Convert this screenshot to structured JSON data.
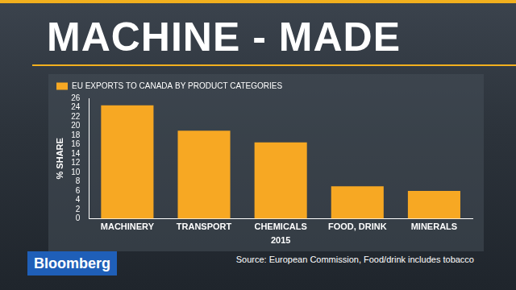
{
  "chart_data": {
    "type": "bar",
    "title": "MACHINE - MADE",
    "categories": [
      "MACHINERY",
      "TRANSPORT",
      "CHEMICALS",
      "FOOD, DRINK",
      "MINERALS"
    ],
    "series": [
      {
        "name": "EU EXPORTS TO CANADA BY PRODUCT CATEGORIES",
        "color": "#f7a823",
        "values": [
          24.5,
          19,
          16.5,
          7,
          6
        ]
      }
    ],
    "x_label": "2015",
    "y_label": "% SHARE",
    "ylim": [
      0,
      26
    ],
    "yticks": [
      0,
      2,
      4,
      6,
      8,
      10,
      12,
      14,
      16,
      18,
      20,
      22,
      24,
      26
    ],
    "grid": false,
    "legend": "top",
    "source": "Source: European Commission, Food/drink includes tobacco",
    "logo": "Bloomberg"
  }
}
